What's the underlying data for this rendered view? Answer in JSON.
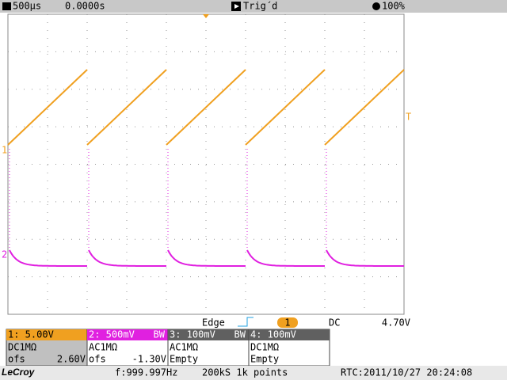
{
  "top_bar": {
    "timebase": "500µs",
    "delay": "0.0000s",
    "trigger_state": "Trig´d",
    "intensity": "100%"
  },
  "markers": {
    "ch1": "1",
    "ch2": "2",
    "trigger_level": "T"
  },
  "trigger": {
    "type": "Edge",
    "source": "1",
    "coupling": "DC",
    "level": "4.70V"
  },
  "channels": [
    {
      "header": "1: 5.00V",
      "coupling": "DC1MΩ",
      "offset_label": "ofs",
      "offset": "2.60V"
    },
    {
      "header": "2: 500mV",
      "bw": "BW",
      "coupling": "AC1MΩ",
      "offset_label": "ofs",
      "offset": "-1.30V"
    },
    {
      "header": "3: 100mV",
      "bw": "BW",
      "coupling": "AC1MΩ",
      "status": "Empty"
    },
    {
      "header": "4: 100mV",
      "coupling": "DC1MΩ",
      "status": "Empty"
    }
  ],
  "footer": {
    "brand": "LeCroy",
    "frequency": "f:999.997Hz",
    "acquisition": "200kS 1k points",
    "rtc": "RTC:2011/10/27 20:24:08"
  }
}
